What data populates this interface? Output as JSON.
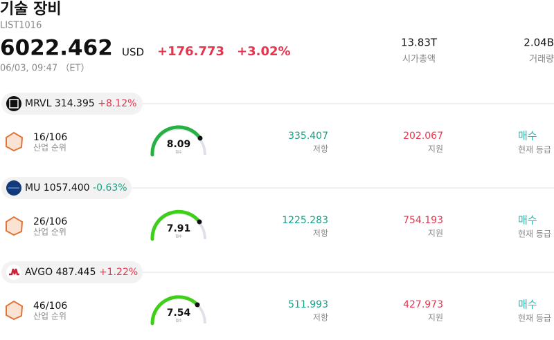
{
  "header": {
    "title": "기술 장비",
    "code": "LIST1016",
    "price": "6022.462",
    "currency": "USD",
    "change": "+176.773",
    "change_pct": "+3.02%",
    "timestamp": "06/03, 09:47 （ET）",
    "market_cap": {
      "value": "13.83T",
      "label": "시가총액"
    },
    "volume": {
      "value": "2.04B",
      "label": "거래량"
    }
  },
  "stocks": [
    {
      "ticker": "MRVL",
      "price": "314.395",
      "change": "+8.12%",
      "rank": "16/106",
      "rank_label": "산업 순위",
      "score": "8.09",
      "score_label": "점수",
      "resistance": "335.407",
      "resistance_label": "저항",
      "support": "202.067",
      "support_label": "지원",
      "rating": "매수",
      "rating_label": "현재 등급"
    },
    {
      "ticker": "MU",
      "price": "1057.400",
      "change": "-0.63%",
      "rank": "26/106",
      "rank_label": "산업 순위",
      "score": "7.91",
      "score_label": "점수",
      "resistance": "1225.283",
      "resistance_label": "저항",
      "support": "754.193",
      "support_label": "지원",
      "rating": "매수",
      "rating_label": "현재 등급"
    },
    {
      "ticker": "AVGO",
      "price": "487.445",
      "change": "+1.22%",
      "rank": "46/106",
      "rank_label": "산업 순위",
      "score": "7.54",
      "score_label": "점수",
      "resistance": "511.993",
      "resistance_label": "저항",
      "support": "427.973",
      "support_label": "지원",
      "rating": "매수",
      "rating_label": "현재 등급"
    }
  ]
}
